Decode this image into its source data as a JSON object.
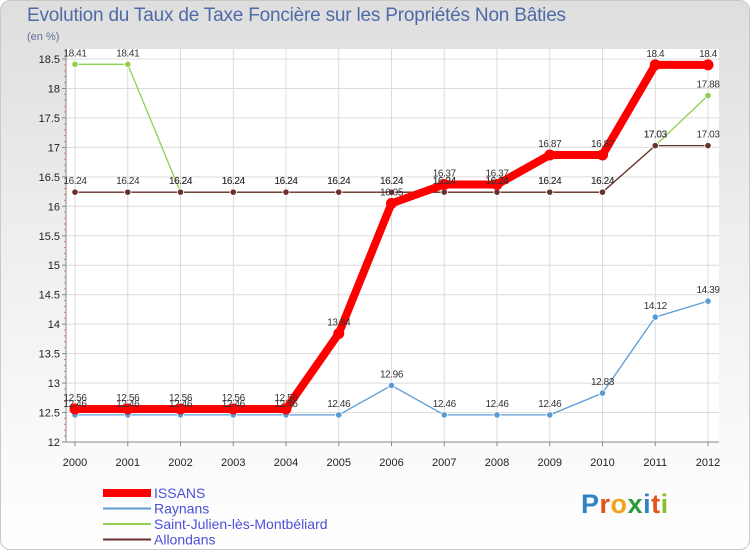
{
  "header": {
    "title": "Evolution du Taux de Taxe Foncière sur les Propriétés Non Bâties",
    "unit": "(en %)"
  },
  "logo": {
    "text": [
      "P",
      "r",
      "o",
      "x",
      "i",
      "t",
      "i"
    ],
    "colors": [
      "#2f83c5",
      "#e2531f",
      "#f2a21c",
      "#2e9b3a",
      "#2f83c5",
      "#e2531f",
      "#8cbf2a"
    ]
  },
  "chart_data": {
    "type": "line",
    "title": "Evolution du Taux de Taxe Foncière sur les Propriétés Non Bâties",
    "ylabel": "(en %)",
    "xlabel": "",
    "x": [
      "2000",
      "2001",
      "2002",
      "2003",
      "2004",
      "2005",
      "2006",
      "2007",
      "2008",
      "2009",
      "2010",
      "2011",
      "2012"
    ],
    "ylim": [
      12,
      18.5
    ],
    "yticks": [
      "12",
      "12.5",
      "13",
      "13.5",
      "14",
      "14.5",
      "15",
      "15.5",
      "16",
      "16.5",
      "17",
      "17.5",
      "18",
      "18.5"
    ],
    "grid": true,
    "legend_position": "bottom-left",
    "series": [
      {
        "name": "ISSANS",
        "color": "#ff0000",
        "values": [
          12.56,
          12.56,
          12.56,
          12.56,
          12.56,
          13.84,
          16.05,
          16.37,
          16.37,
          16.87,
          16.87,
          18.4,
          18.4
        ],
        "labels": [
          "12.56",
          "12.56",
          "12.56",
          "12.56",
          "12.56",
          "13.84",
          "16.05",
          "16.37",
          "16.37",
          "16.87",
          "16.87",
          "18.4",
          "18.4"
        ]
      },
      {
        "name": "Raynans",
        "color": "#5b9bd5",
        "values": [
          12.46,
          12.46,
          12.46,
          12.46,
          12.46,
          12.46,
          12.96,
          12.46,
          12.46,
          12.46,
          12.83,
          14.12,
          14.39
        ],
        "labels": [
          "12.46",
          "12.46",
          "12.46",
          "12.46",
          "12.46",
          "12.46",
          "12.96",
          "12.46",
          "12.46",
          "12.46",
          "12.83",
          "14.12",
          "14.39"
        ]
      },
      {
        "name": "Saint-Julien-lès-Montbéliard",
        "color": "#8fd14f",
        "values": [
          18.41,
          18.41,
          16.24,
          16.24,
          16.24,
          16.24,
          16.24,
          16.24,
          16.24,
          16.24,
          16.24,
          17.03,
          17.88
        ],
        "labels": [
          "18.41",
          "18.41",
          "16.24",
          "16.24",
          "16.24",
          "16.24",
          "16.24",
          "16.24",
          "16.24",
          "16.24",
          "16.24",
          "17.03",
          "17.88"
        ]
      },
      {
        "name": "Allondans",
        "color": "#6b2f2f",
        "values": [
          16.24,
          16.24,
          16.24,
          16.24,
          16.24,
          16.24,
          16.24,
          16.24,
          16.24,
          16.24,
          16.24,
          17.03,
          17.03
        ],
        "labels": [
          "16.24",
          "16.24",
          "16.24",
          "16.24",
          "16.24",
          "16.24",
          "16.24",
          "16.24",
          "16.24",
          "16.24",
          "16.24",
          "17.03",
          "17.03"
        ]
      }
    ]
  }
}
